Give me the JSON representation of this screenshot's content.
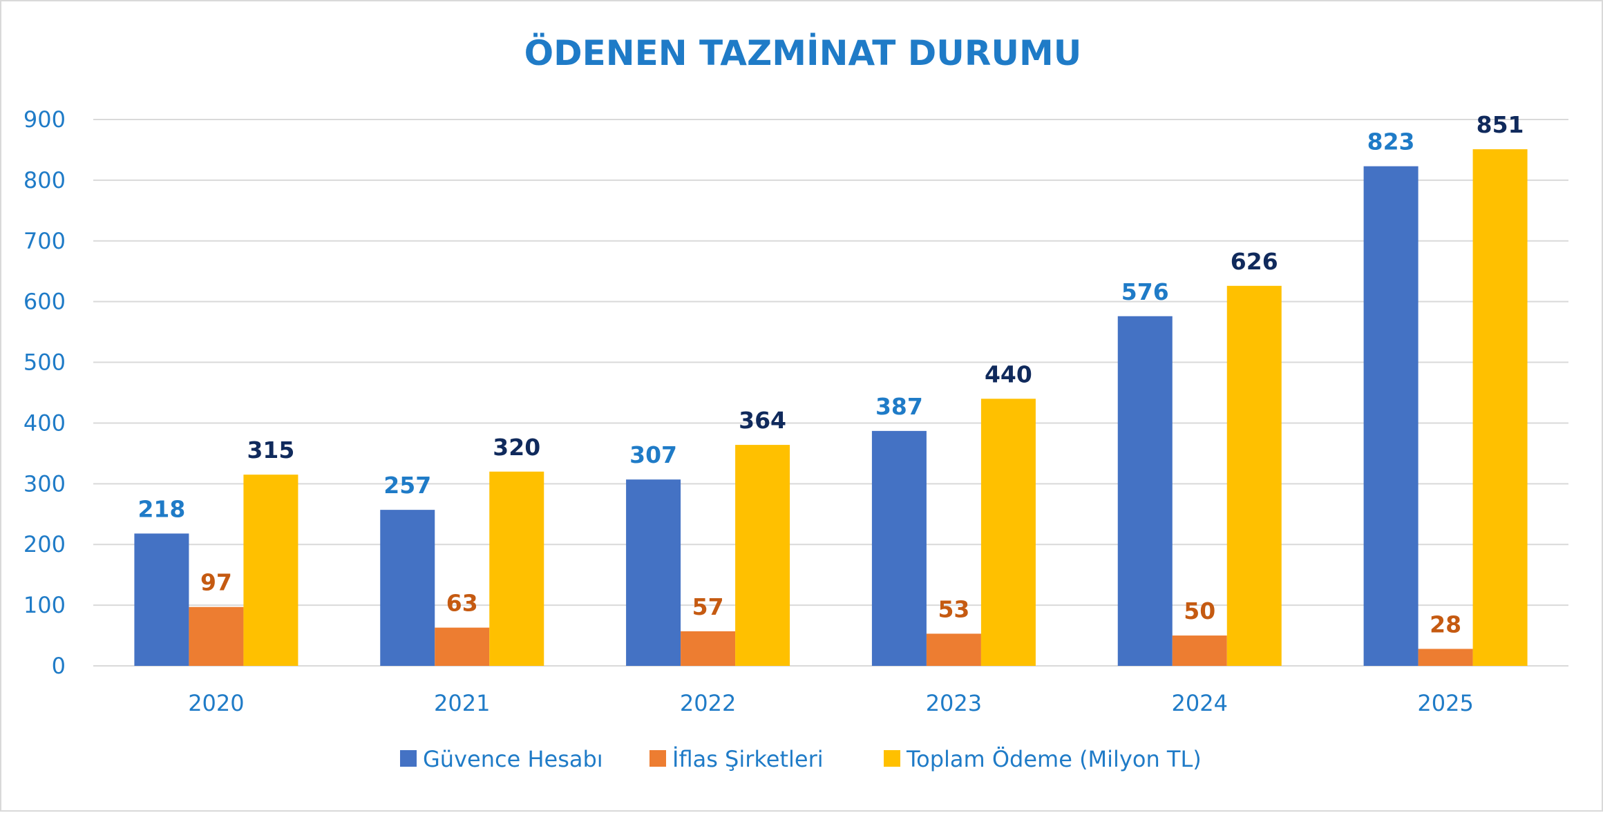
{
  "chart_data": {
    "type": "bar",
    "title": "ÖDENEN TAZMİNAT DURUMU",
    "categories": [
      "2020",
      "2021",
      "2022",
      "2023",
      "2024",
      "2025"
    ],
    "series": [
      {
        "name": "Güvence Hesabı",
        "values": [
          218,
          257,
          307,
          387,
          576,
          823
        ],
        "color": "#4472C4",
        "label_color": "#1F7BC7"
      },
      {
        "name": "İflas Şirketleri",
        "values": [
          97,
          63,
          57,
          53,
          50,
          28
        ],
        "color": "#ED7D31",
        "label_color": "#C55A11"
      },
      {
        "name": "Toplam Ödeme (Milyon TL)",
        "values": [
          315,
          320,
          364,
          440,
          626,
          851
        ],
        "color": "#FFC000",
        "label_color": "#102A5C"
      }
    ],
    "yticks": [
      "0",
      "100",
      "200",
      "300",
      "400",
      "500",
      "600",
      "700",
      "800",
      "900"
    ],
    "ylim": [
      0,
      900
    ],
    "xlabel": "",
    "ylabel": "",
    "grid": true,
    "legend_position": "bottom",
    "title_color": "#1F7BC7",
    "axis_text_color": "#1F7BC7",
    "grid_color": "#d9d9d9"
  }
}
